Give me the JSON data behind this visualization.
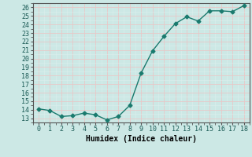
{
  "x": [
    0,
    1,
    2,
    3,
    4,
    5,
    6,
    7,
    8,
    9,
    10,
    11,
    12,
    13,
    14,
    15,
    16,
    17,
    18
  ],
  "y": [
    14.1,
    13.9,
    13.2,
    13.3,
    13.6,
    13.4,
    12.8,
    13.2,
    14.5,
    18.3,
    20.9,
    22.6,
    24.1,
    24.9,
    24.4,
    25.6,
    25.6,
    25.5,
    26.2
  ],
  "line_color": "#1a7a6e",
  "bg_color": "#cce8e5",
  "grid_major_color": "#e8c8c8",
  "grid_minor_color": "#ddeeed",
  "xlabel": "Humidex (Indice chaleur)",
  "ylim": [
    12.5,
    26.5
  ],
  "xlim": [
    -0.5,
    18.5
  ],
  "yticks": [
    13,
    14,
    15,
    16,
    17,
    18,
    19,
    20,
    21,
    22,
    23,
    24,
    25,
    26
  ],
  "xticks": [
    0,
    1,
    2,
    3,
    4,
    5,
    6,
    7,
    8,
    9,
    10,
    11,
    12,
    13,
    14,
    15,
    16,
    17,
    18
  ],
  "marker": "D",
  "marker_size": 2.5,
  "line_width": 1.0,
  "xlabel_fontsize": 7,
  "tick_fontsize": 6
}
